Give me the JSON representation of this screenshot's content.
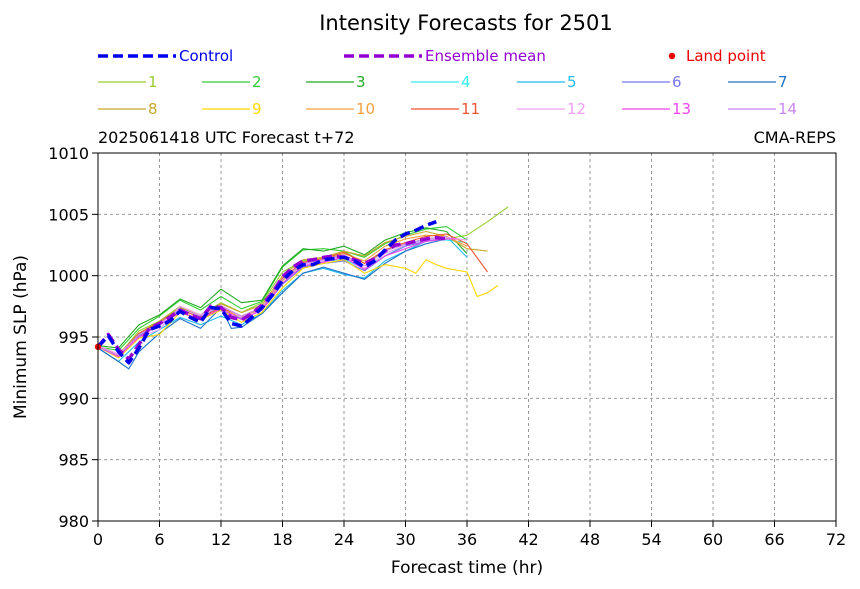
{
  "chart_data": {
    "type": "line",
    "title": "Intensity Forecasts for 2501",
    "subtitle_left": "2025061418 UTC Forecast t+72",
    "subtitle_right": "CMA-REPS",
    "xlabel": "Forecast time (hr)",
    "ylabel": "Minimum SLP (hPa)",
    "xlim": [
      0,
      72
    ],
    "ylim": [
      980,
      1010
    ],
    "xticks": [
      0,
      6,
      12,
      18,
      24,
      30,
      36,
      42,
      48,
      54,
      60,
      66,
      72
    ],
    "yticks": [
      980,
      985,
      990,
      995,
      1000,
      1005,
      1010
    ],
    "grid": true,
    "legend_position": "top",
    "legend": {
      "control": "Control",
      "ensemble_mean": "Ensemble mean",
      "land_point": "Land point"
    },
    "land_points": [
      {
        "x": 0,
        "y": 994.2
      }
    ],
    "control": {
      "name": "Control",
      "color": "#0000ee",
      "x": [
        0,
        1,
        2,
        3,
        4,
        5,
        6,
        7,
        8,
        9,
        10,
        11,
        12,
        13,
        14,
        15,
        16,
        17,
        18,
        19,
        20,
        21,
        22,
        23,
        24,
        25,
        26,
        27,
        28,
        29,
        30,
        31,
        32,
        33
      ],
      "values": [
        994.2,
        995.1,
        993.8,
        992.9,
        994.1,
        995.6,
        995.9,
        996.3,
        997.1,
        996.6,
        996.2,
        997.4,
        997.3,
        996.1,
        995.9,
        996.6,
        997.4,
        998.4,
        999.6,
        1000.4,
        1000.9,
        1000.9,
        1001.3,
        1001.4,
        1001.5,
        1001.2,
        1000.7,
        1001.2,
        1002.1,
        1002.9,
        1003.4,
        1003.7,
        1004.1,
        1004.4
      ]
    },
    "ensemble_mean": {
      "name": "Ensemble mean",
      "color": "#9400d3",
      "x": [
        0,
        1,
        2,
        3,
        4,
        5,
        6,
        7,
        8,
        9,
        10,
        11,
        12,
        13,
        14,
        15,
        16,
        17,
        18,
        19,
        20,
        21,
        22,
        23,
        24,
        25,
        26,
        27,
        28,
        29,
        30,
        31,
        32,
        33,
        34
      ],
      "values": [
        994.2,
        995.2,
        994.0,
        993.2,
        994.4,
        995.7,
        996.1,
        996.6,
        997.2,
        996.8,
        996.5,
        997.5,
        997.4,
        996.6,
        996.4,
        996.9,
        997.6,
        998.6,
        999.9,
        1000.7,
        1001.2,
        1001.3,
        1001.5,
        1001.6,
        1001.5,
        1001.3,
        1001.0,
        1001.4,
        1002.0,
        1002.5,
        1002.6,
        1002.8,
        1003.0,
        1003.1,
        1003.0
      ]
    },
    "series": [
      {
        "name": "1",
        "color": "#9acd32",
        "x": [
          0,
          2,
          4,
          6,
          8,
          10,
          12,
          14,
          16,
          18,
          20,
          22,
          24,
          26,
          28,
          30,
          32,
          34,
          36,
          38,
          40
        ],
        "values": [
          994.3,
          993.5,
          995.5,
          996.3,
          997.5,
          996.8,
          997.8,
          997.0,
          997.8,
          1000.3,
          1001.2,
          1001.5,
          1002.0,
          1001.0,
          1002.0,
          1002.6,
          1003.0,
          1003.0,
          1003.3,
          1004.4,
          1005.6
        ]
      },
      {
        "name": "2",
        "color": "#32cd32",
        "x": [
          0,
          2,
          4,
          6,
          8,
          10,
          12,
          14,
          16,
          18,
          20,
          22,
          24,
          26,
          28,
          30,
          32,
          34,
          36
        ],
        "values": [
          994.2,
          993.9,
          995.7,
          996.7,
          998.0,
          997.2,
          998.3,
          997.3,
          997.9,
          1000.7,
          1002.1,
          1002.2,
          1002.0,
          1001.5,
          1002.6,
          1003.3,
          1003.8,
          1004.0,
          1002.9
        ]
      },
      {
        "name": "3",
        "color": "#22aa22",
        "x": [
          0,
          2,
          4,
          6,
          8,
          10,
          12,
          14,
          16,
          18,
          20,
          22,
          24,
          26,
          28,
          30,
          32,
          34,
          36
        ],
        "values": [
          994.3,
          994.1,
          996.0,
          996.8,
          998.1,
          997.4,
          998.9,
          997.8,
          998.0,
          1000.8,
          1002.2,
          1002.0,
          1002.4,
          1001.7,
          1002.9,
          1003.5,
          1003.9,
          1003.6,
          1001.8
        ]
      },
      {
        "name": "4",
        "color": "#33eeee",
        "x": [
          0,
          2,
          4,
          6,
          8,
          10,
          12,
          14,
          16,
          18,
          20,
          22,
          24,
          26,
          28,
          30,
          32,
          34,
          36
        ],
        "values": [
          994.2,
          993.4,
          995.2,
          996.2,
          997.4,
          996.6,
          997.5,
          996.7,
          997.3,
          999.6,
          1001.0,
          1001.2,
          1001.3,
          1000.6,
          1001.6,
          1002.5,
          1003.0,
          1002.9,
          1002.7
        ]
      },
      {
        "name": "5",
        "color": "#22bbee",
        "x": [
          0,
          2,
          4,
          6,
          8,
          10,
          12,
          14,
          16,
          18,
          20,
          22,
          24,
          26,
          28,
          30,
          32,
          34,
          36
        ],
        "values": [
          994.1,
          993.0,
          994.6,
          995.6,
          996.6,
          996.0,
          996.7,
          996.0,
          996.9,
          998.8,
          1000.2,
          1000.6,
          1000.1,
          999.8,
          1001.2,
          1002.0,
          1002.8,
          1003.2,
          1001.5
        ]
      },
      {
        "name": "6",
        "color": "#7777ee",
        "x": [
          0,
          2,
          4,
          6,
          8,
          10,
          12,
          14,
          16,
          18,
          20,
          22,
          24,
          26,
          28,
          30,
          32,
          34
        ],
        "values": [
          994.2,
          993.5,
          995.1,
          996.0,
          997.0,
          996.4,
          997.2,
          996.5,
          997.2,
          999.3,
          1000.7,
          1001.0,
          1001.2,
          1000.4,
          1001.6,
          1002.4,
          1002.8,
          1003.0
        ]
      },
      {
        "name": "7",
        "color": "#1e73c8",
        "x": [
          0,
          2,
          3,
          4,
          6,
          8,
          10,
          12,
          13,
          14,
          16,
          18,
          20,
          22,
          24,
          26,
          28,
          30,
          32,
          34
        ],
        "values": [
          994.1,
          993.0,
          992.4,
          993.8,
          995.3,
          996.5,
          995.7,
          997.4,
          995.7,
          995.8,
          996.9,
          998.6,
          1000.2,
          1000.7,
          1000.2,
          999.7,
          1001.0,
          1002.0,
          1002.6,
          1003.0
        ]
      },
      {
        "name": "8",
        "color": "#c8a82a",
        "x": [
          0,
          2,
          4,
          6,
          8,
          10,
          12,
          14,
          16,
          18,
          20,
          22,
          24,
          26,
          28,
          30,
          32,
          34,
          36,
          38
        ],
        "values": [
          994.2,
          993.6,
          995.3,
          996.3,
          997.4,
          996.8,
          997.7,
          997.0,
          997.6,
          1000.0,
          1001.3,
          1001.5,
          1002.0,
          1001.6,
          1002.7,
          1003.2,
          1003.6,
          1003.2,
          1002.2,
          1002.0
        ]
      },
      {
        "name": "9",
        "color": "#ffd700",
        "x": [
          0,
          2,
          4,
          6,
          8,
          10,
          12,
          14,
          16,
          18,
          20,
          22,
          24,
          26,
          28,
          30,
          31,
          32,
          33,
          34,
          36,
          37,
          38,
          39
        ],
        "values": [
          994.2,
          993.3,
          994.9,
          995.2,
          997.0,
          996.4,
          997.2,
          996.2,
          997.0,
          999.0,
          1000.6,
          1001.0,
          1001.3,
          1000.2,
          1000.9,
          1000.6,
          1000.2,
          1001.3,
          1000.9,
          1000.6,
          1000.3,
          998.3,
          998.6,
          999.2
        ]
      },
      {
        "name": "10",
        "color": "#f4a040",
        "x": [
          0,
          2,
          4,
          6,
          8,
          10,
          12,
          14,
          16,
          18,
          20,
          22,
          24,
          26,
          28,
          30,
          32,
          34,
          36
        ],
        "values": [
          994.2,
          993.4,
          995.2,
          996.2,
          997.2,
          996.6,
          997.3,
          996.6,
          997.3,
          999.6,
          1001.0,
          1001.3,
          1001.8,
          1001.2,
          1002.4,
          1003.0,
          1003.3,
          1003.2,
          1002.4
        ]
      },
      {
        "name": "11",
        "color": "#ee5533",
        "x": [
          0,
          2,
          4,
          6,
          8,
          10,
          12,
          14,
          16,
          18,
          20,
          22,
          24,
          26,
          28,
          30,
          32,
          34,
          36,
          38
        ],
        "values": [
          994.2,
          993.5,
          995.3,
          996.2,
          997.3,
          996.6,
          997.4,
          996.7,
          997.4,
          999.8,
          1001.1,
          1001.4,
          1001.9,
          1001.0,
          1002.1,
          1002.7,
          1003.2,
          1003.4,
          1002.6,
          1000.3
        ]
      },
      {
        "name": "12",
        "color": "#f0a0f0",
        "x": [
          0,
          2,
          4,
          6,
          8,
          10,
          12,
          14,
          16,
          18,
          20,
          22,
          24,
          26,
          28,
          30,
          32,
          34,
          36
        ],
        "values": [
          994.3,
          993.6,
          995.0,
          995.6,
          997.5,
          996.8,
          997.6,
          996.6,
          997.2,
          999.4,
          1000.9,
          1001.2,
          1001.6,
          1000.6,
          1001.8,
          1002.5,
          1002.9,
          1003.1,
          1002.9
        ]
      },
      {
        "name": "13",
        "color": "#ee44ee",
        "x": [
          0,
          2,
          4,
          6,
          8,
          10,
          12,
          14,
          16,
          18,
          20,
          22,
          24,
          26,
          28,
          30,
          32,
          34,
          35
        ],
        "values": [
          994.2,
          993.4,
          995.0,
          996.0,
          997.0,
          996.5,
          997.3,
          996.4,
          997.2,
          999.4,
          1000.8,
          1001.1,
          1001.5,
          1000.5,
          1001.6,
          1002.2,
          1002.8,
          1003.0,
          1003.0
        ]
      },
      {
        "name": "14",
        "color": "#cc88f0",
        "x": [
          0,
          2,
          4,
          6,
          8,
          10,
          12,
          14,
          16,
          18,
          20,
          22,
          24,
          26,
          28,
          30,
          32,
          34
        ],
        "values": [
          994.2,
          993.5,
          995.2,
          996.1,
          997.3,
          996.7,
          997.5,
          996.7,
          997.4,
          999.7,
          1001.0,
          1001.3,
          1001.7,
          1000.8,
          1002.0,
          1002.6,
          1003.0,
          1003.2
        ]
      }
    ]
  }
}
